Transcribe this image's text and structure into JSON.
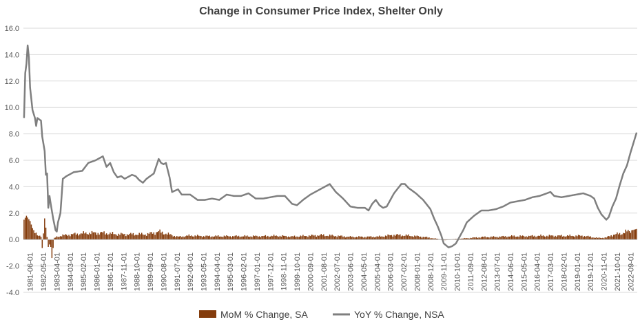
{
  "chart_data": {
    "type": "bar+line",
    "title": "Change in Consumer Price Index, Shelter Only",
    "ylim": [
      -4.0,
      16.0
    ],
    "yticks": [
      "-4.0",
      "-2.0",
      "0.0",
      "2.0",
      "4.0",
      "6.0",
      "8.0",
      "10.0",
      "12.0",
      "14.0",
      "16.0"
    ],
    "x_tick_labels": [
      "1981-06-01",
      "1982-05-01",
      "1983-04-01",
      "1984-03-01",
      "1985-02-01",
      "1986-01-01",
      "1986-12-01",
      "1987-11-01",
      "1988-10-01",
      "1989-09-01",
      "1990-08-01",
      "1991-07-01",
      "1992-06-01",
      "1993-05-01",
      "1994-04-01",
      "1995-03-01",
      "1996-02-01",
      "1997-01-01",
      "1997-12-01",
      "1998-11-01",
      "1999-10-01",
      "2000-09-01",
      "2001-08-01",
      "2002-07-01",
      "2003-06-01",
      "2004-05-01",
      "2005-04-01",
      "2006-03-01",
      "2007-02-01",
      "2008-01-01",
      "2008-12-01",
      "2009-11-01",
      "2010-10-01",
      "2011-09-01",
      "2012-08-01",
      "2013-07-01",
      "2014-06-01",
      "2015-05-01",
      "2016-04-01",
      "2017-03-01",
      "2018-02-01",
      "2019-01-01",
      "2019-12-01",
      "2020-11-01",
      "2021-10-01",
      "2022-09-01"
    ],
    "x_start": "1981-01",
    "x_end": "2023-02",
    "grid": true,
    "legend_position": "bottom",
    "series": [
      {
        "name": "MoM % Change, SA",
        "type": "bar",
        "color": "#843c0c",
        "keypoints": [
          [
            "1981-01",
            1.5
          ],
          [
            "1981-03",
            1.8
          ],
          [
            "1981-06",
            1.4
          ],
          [
            "1981-09",
            0.6
          ],
          [
            "1981-12",
            0.3
          ],
          [
            "1982-03",
            0.3
          ],
          [
            "1982-04",
            -0.6
          ],
          [
            "1982-06",
            1.6
          ],
          [
            "1982-07",
            0.9
          ],
          [
            "1982-09",
            -0.5
          ],
          [
            "1982-11",
            -0.6
          ],
          [
            "1982-12",
            -1.4
          ],
          [
            "1983-02",
            0.1
          ],
          [
            "1983-04",
            0.2
          ],
          [
            "1983-08",
            0.3
          ],
          [
            "1984-06",
            0.4
          ],
          [
            "1985-06",
            0.5
          ],
          [
            "1986-06",
            0.5
          ],
          [
            "1987-06",
            0.4
          ],
          [
            "1988-06",
            0.4
          ],
          [
            "1989-06",
            0.4
          ],
          [
            "1990-04",
            0.6
          ],
          [
            "1990-12",
            0.4
          ],
          [
            "1991-08",
            0.2
          ],
          [
            "1992-06",
            0.3
          ],
          [
            "1993-06",
            0.25
          ],
          [
            "1994-06",
            0.25
          ],
          [
            "1995-06",
            0.25
          ],
          [
            "1996-06",
            0.25
          ],
          [
            "1997-06",
            0.25
          ],
          [
            "1998-06",
            0.28
          ],
          [
            "1999-06",
            0.22
          ],
          [
            "2000-06",
            0.28
          ],
          [
            "2001-06",
            0.33
          ],
          [
            "2002-06",
            0.28
          ],
          [
            "2003-06",
            0.2
          ],
          [
            "2004-06",
            0.2
          ],
          [
            "2005-06",
            0.22
          ],
          [
            "2006-06",
            0.35
          ],
          [
            "2007-06",
            0.3
          ],
          [
            "2008-06",
            0.2
          ],
          [
            "2009-06",
            0.05
          ],
          [
            "2009-12",
            -0.05
          ],
          [
            "2010-06",
            0.02
          ],
          [
            "2011-06",
            0.1
          ],
          [
            "2012-06",
            0.18
          ],
          [
            "2013-06",
            0.2
          ],
          [
            "2014-06",
            0.25
          ],
          [
            "2015-06",
            0.25
          ],
          [
            "2016-06",
            0.28
          ],
          [
            "2017-06",
            0.28
          ],
          [
            "2018-06",
            0.28
          ],
          [
            "2019-06",
            0.28
          ],
          [
            "2020-06",
            0.12
          ],
          [
            "2021-01",
            0.15
          ],
          [
            "2021-06",
            0.35
          ],
          [
            "2022-01",
            0.45
          ],
          [
            "2022-06",
            0.6
          ],
          [
            "2023-02",
            0.8
          ]
        ]
      },
      {
        "name": "YoY % Change, NSA",
        "type": "line",
        "color": "#7f7f7f",
        "keypoints": [
          [
            "1981-01",
            9.2
          ],
          [
            "1981-02",
            12.6
          ],
          [
            "1981-03",
            13.3
          ],
          [
            "1981-04",
            14.7
          ],
          [
            "1981-05",
            13.8
          ],
          [
            "1981-06",
            11.5
          ],
          [
            "1981-08",
            9.8
          ],
          [
            "1981-10",
            9.2
          ],
          [
            "1981-11",
            8.6
          ],
          [
            "1981-12",
            9.2
          ],
          [
            "1982-03",
            9.0
          ],
          [
            "1982-04",
            7.8
          ],
          [
            "1982-06",
            6.7
          ],
          [
            "1982-07",
            4.9
          ],
          [
            "1982-08",
            5.0
          ],
          [
            "1982-09",
            2.4
          ],
          [
            "1982-10",
            3.3
          ],
          [
            "1982-11",
            2.7
          ],
          [
            "1983-01",
            1.6
          ],
          [
            "1983-03",
            0.7
          ],
          [
            "1983-04",
            0.6
          ],
          [
            "1983-05",
            1.3
          ],
          [
            "1983-07",
            2.0
          ],
          [
            "1983-09",
            4.6
          ],
          [
            "1983-12",
            4.8
          ],
          [
            "1984-06",
            5.1
          ],
          [
            "1985-01",
            5.2
          ],
          [
            "1985-06",
            5.8
          ],
          [
            "1985-12",
            6.0
          ],
          [
            "1986-06",
            6.3
          ],
          [
            "1986-09",
            5.5
          ],
          [
            "1986-12",
            5.8
          ],
          [
            "1987-03",
            5.1
          ],
          [
            "1987-06",
            4.7
          ],
          [
            "1987-09",
            4.8
          ],
          [
            "1987-12",
            4.6
          ],
          [
            "1988-06",
            4.9
          ],
          [
            "1988-09",
            4.8
          ],
          [
            "1988-12",
            4.5
          ],
          [
            "1989-03",
            4.3
          ],
          [
            "1989-06",
            4.6
          ],
          [
            "1989-09",
            4.8
          ],
          [
            "1989-12",
            5.0
          ],
          [
            "1990-04",
            6.1
          ],
          [
            "1990-06",
            5.8
          ],
          [
            "1990-08",
            5.7
          ],
          [
            "1990-10",
            5.8
          ],
          [
            "1991-01",
            4.7
          ],
          [
            "1991-03",
            3.6
          ],
          [
            "1991-08",
            3.8
          ],
          [
            "1991-11",
            3.4
          ],
          [
            "1992-06",
            3.4
          ],
          [
            "1992-12",
            3.0
          ],
          [
            "1993-06",
            3.0
          ],
          [
            "1993-12",
            3.1
          ],
          [
            "1994-06",
            3.0
          ],
          [
            "1994-12",
            3.4
          ],
          [
            "1995-06",
            3.3
          ],
          [
            "1995-12",
            3.3
          ],
          [
            "1996-06",
            3.5
          ],
          [
            "1996-12",
            3.1
          ],
          [
            "1997-06",
            3.1
          ],
          [
            "1997-12",
            3.2
          ],
          [
            "1998-06",
            3.3
          ],
          [
            "1998-12",
            3.3
          ],
          [
            "1999-06",
            2.7
          ],
          [
            "1999-10",
            2.6
          ],
          [
            "2000-03",
            3.0
          ],
          [
            "2000-09",
            3.4
          ],
          [
            "2001-03",
            3.7
          ],
          [
            "2001-09",
            4.0
          ],
          [
            "2002-01",
            4.2
          ],
          [
            "2002-06",
            3.6
          ],
          [
            "2002-12",
            3.1
          ],
          [
            "2003-06",
            2.5
          ],
          [
            "2003-12",
            2.4
          ],
          [
            "2004-06",
            2.4
          ],
          [
            "2004-09",
            2.2
          ],
          [
            "2004-12",
            2.7
          ],
          [
            "2005-03",
            3.0
          ],
          [
            "2005-06",
            2.6
          ],
          [
            "2005-09",
            2.4
          ],
          [
            "2005-12",
            2.5
          ],
          [
            "2006-06",
            3.5
          ],
          [
            "2006-12",
            4.2
          ],
          [
            "2007-03",
            4.2
          ],
          [
            "2007-06",
            3.9
          ],
          [
            "2007-12",
            3.5
          ],
          [
            "2008-06",
            3.0
          ],
          [
            "2008-12",
            2.3
          ],
          [
            "2009-03",
            1.6
          ],
          [
            "2009-06",
            1.0
          ],
          [
            "2009-09",
            0.3
          ],
          [
            "2009-11",
            -0.3
          ],
          [
            "2010-03",
            -0.6
          ],
          [
            "2010-06",
            -0.5
          ],
          [
            "2010-09",
            -0.3
          ],
          [
            "2010-12",
            0.2
          ],
          [
            "2011-03",
            0.7
          ],
          [
            "2011-06",
            1.3
          ],
          [
            "2011-12",
            1.8
          ],
          [
            "2012-06",
            2.2
          ],
          [
            "2012-12",
            2.2
          ],
          [
            "2013-06",
            2.3
          ],
          [
            "2013-12",
            2.5
          ],
          [
            "2014-06",
            2.8
          ],
          [
            "2014-12",
            2.9
          ],
          [
            "2015-06",
            3.0
          ],
          [
            "2015-12",
            3.2
          ],
          [
            "2016-06",
            3.3
          ],
          [
            "2016-12",
            3.5
          ],
          [
            "2017-03",
            3.6
          ],
          [
            "2017-06",
            3.3
          ],
          [
            "2017-12",
            3.2
          ],
          [
            "2018-06",
            3.3
          ],
          [
            "2018-12",
            3.4
          ],
          [
            "2019-06",
            3.5
          ],
          [
            "2019-12",
            3.3
          ],
          [
            "2020-03",
            3.1
          ],
          [
            "2020-06",
            2.4
          ],
          [
            "2020-09",
            1.9
          ],
          [
            "2021-01",
            1.5
          ],
          [
            "2021-03",
            1.7
          ],
          [
            "2021-06",
            2.5
          ],
          [
            "2021-09",
            3.1
          ],
          [
            "2021-12",
            4.1
          ],
          [
            "2022-03",
            5.0
          ],
          [
            "2022-06",
            5.6
          ],
          [
            "2022-09",
            6.6
          ],
          [
            "2022-12",
            7.5
          ],
          [
            "2023-02",
            8.1
          ]
        ]
      }
    ]
  }
}
